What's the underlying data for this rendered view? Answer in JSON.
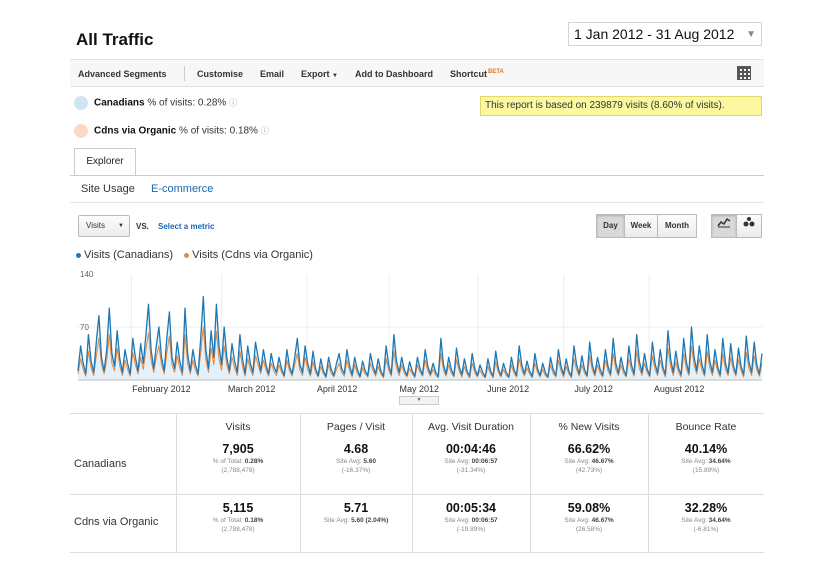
{
  "header": {
    "title": "All Traffic",
    "date_range": "1 Jan 2012 - 31 Aug 2012"
  },
  "toolbar": {
    "advanced_segments": "Advanced Segments",
    "customise": "Customise",
    "email": "Email",
    "export": "Export",
    "add_to_dashboard": "Add to Dashboard",
    "shortcut": "Shortcut",
    "beta": "BETA"
  },
  "segments": [
    {
      "name": "Canadians",
      "info": "% of visits: 0.28%",
      "color": "#cfe6f5"
    },
    {
      "name": "Cdns via Organic",
      "info": "% of visits: 0.18%",
      "color": "#fbd9c4"
    }
  ],
  "notice": "This report is based on 239879 visits (8.60% of visits).",
  "tabs": {
    "explorer": "Explorer",
    "site_usage": "Site Usage",
    "ecommerce": "E-commerce"
  },
  "controls": {
    "metric": "Visits",
    "vs": "VS.",
    "select_metric": "Select a metric",
    "day": "Day",
    "week": "Week",
    "month": "Month"
  },
  "colors": {
    "series1": "#1f77b4",
    "series2": "#e8883a",
    "area": "#e4f1fa"
  },
  "chart_data": {
    "type": "line",
    "series": [
      {
        "name": "Visits (Canadians)",
        "values": [
          12,
          45,
          22,
          8,
          60,
          25,
          10,
          50,
          85,
          30,
          12,
          40,
          95,
          35,
          18,
          65,
          28,
          10,
          40,
          22,
          8,
          55,
          30,
          12,
          48,
          22,
          60,
          100,
          40,
          15,
          45,
          70,
          30,
          12,
          55,
          90,
          30,
          15,
          50,
          25,
          10,
          95,
          35,
          12,
          40,
          20,
          8,
          55,
          110,
          40,
          15,
          65,
          30,
          100,
          45,
          20,
          70,
          30,
          12,
          48,
          25,
          10,
          60,
          28,
          8,
          45,
          22,
          10,
          50,
          30,
          12,
          40,
          20,
          8,
          35,
          18,
          10,
          30,
          15,
          6,
          40,
          18,
          8,
          30,
          55,
          20,
          10,
          45,
          22,
          8,
          38,
          15,
          6,
          28,
          12,
          5,
          30,
          14,
          6,
          22,
          35,
          15,
          8,
          40,
          20,
          7,
          30,
          14,
          5,
          25,
          12,
          6,
          35,
          18,
          8,
          28,
          12,
          5,
          45,
          20,
          8,
          60,
          25,
          10,
          30,
          14,
          6,
          24,
          12,
          5,
          30,
          15,
          7,
          40,
          18,
          8,
          22,
          10,
          5,
          55,
          20,
          8,
          30,
          14,
          6,
          42,
          18,
          7,
          28,
          12,
          5,
          35,
          15,
          6,
          20,
          10,
          4,
          28,
          12,
          5,
          38,
          15,
          6,
          22,
          10,
          4,
          30,
          14,
          6,
          45,
          20,
          8,
          25,
          12,
          5,
          35,
          15,
          6,
          22,
          10,
          4,
          30,
          14,
          6,
          40,
          18,
          7,
          28,
          12,
          5,
          45,
          20,
          8,
          32,
          14,
          6,
          50,
          20,
          8,
          30,
          14,
          6,
          40,
          18,
          8,
          55,
          22,
          9,
          30,
          14,
          6,
          45,
          20,
          8,
          60,
          25,
          10,
          35,
          15,
          6,
          50,
          22,
          9,
          40,
          18,
          7,
          65,
          28,
          10,
          38,
          16,
          7,
          55,
          24,
          9,
          70,
          30,
          12,
          45,
          20,
          8,
          60,
          25,
          10,
          40,
          18,
          7,
          55,
          22,
          9,
          48,
          20,
          8,
          42,
          18,
          7,
          58,
          24,
          10,
          50,
          20,
          8,
          35
        ],
        "ylim": [
          0,
          140
        ]
      },
      {
        "name": "Visits (Cdns via Organic)",
        "values": [
          8,
          28,
          14,
          5,
          38,
          16,
          6,
          32,
          55,
          20,
          8,
          26,
          60,
          22,
          12,
          42,
          18,
          6,
          26,
          14,
          5,
          36,
          20,
          8,
          30,
          14,
          40,
          62,
          26,
          10,
          30,
          45,
          20,
          8,
          36,
          58,
          20,
          10,
          32,
          16,
          6,
          60,
          22,
          8,
          26,
          13,
          5,
          36,
          70,
          26,
          10,
          42,
          20,
          64,
          28,
          13,
          45,
          20,
          8,
          30,
          16,
          6,
          38,
          18,
          5,
          28,
          14,
          6,
          32,
          20,
          8,
          26,
          13,
          5,
          22,
          12,
          6,
          20,
          10,
          4,
          26,
          12,
          5,
          20,
          35,
          13,
          6,
          30,
          14,
          5,
          24,
          10,
          4,
          18,
          8,
          3,
          20,
          9,
          4,
          14,
          22,
          10,
          5,
          26,
          13,
          4,
          20,
          9,
          3,
          16,
          8,
          4,
          22,
          12,
          5,
          18,
          8,
          3,
          28,
          13,
          5,
          38,
          16,
          6,
          20,
          9,
          4,
          15,
          8,
          3,
          20,
          10,
          5,
          26,
          12,
          5,
          14,
          6,
          3,
          35,
          13,
          5,
          20,
          9,
          4,
          27,
          12,
          4,
          18,
          8,
          3,
          22,
          10,
          4,
          13,
          6,
          3,
          18,
          8,
          3,
          24,
          10,
          4,
          14,
          6,
          3,
          20,
          9,
          4,
          28,
          13,
          5,
          16,
          8,
          3,
          22,
          10,
          4,
          14,
          6,
          3,
          20,
          9,
          4,
          26,
          12,
          4,
          18,
          8,
          3,
          28,
          13,
          5,
          20,
          9,
          4,
          32,
          13,
          5,
          20,
          9,
          4,
          26,
          12,
          5,
          35,
          14,
          6,
          20,
          9,
          4,
          28,
          13,
          5,
          38,
          16,
          6,
          22,
          10,
          4,
          32,
          14,
          6,
          26,
          12,
          4,
          42,
          18,
          6,
          24,
          10,
          4,
          35,
          15,
          6,
          45,
          20,
          8,
          28,
          13,
          5,
          38,
          16,
          6,
          26,
          12,
          4,
          35,
          14,
          6,
          30,
          13,
          5,
          27,
          12,
          4,
          37,
          15,
          6,
          32,
          13,
          5,
          22
        ],
        "ylim": [
          0,
          140
        ]
      }
    ],
    "y_ticks": [
      "140",
      "70"
    ],
    "x_ticks": [
      "February 2012",
      "March 2012",
      "April 2012",
      "May 2012",
      "June 2012",
      "July 2012",
      "August 2012"
    ],
    "ylim": [
      0,
      140
    ],
    "grid": true,
    "legend": "top-left"
  },
  "stats": {
    "columns": [
      "Visits",
      "Pages / Visit",
      "Avg. Visit Duration",
      "% New Visits",
      "Bounce Rate"
    ],
    "rows": [
      {
        "label": "Canadians",
        "cells": [
          {
            "value": "7,905",
            "sub1": "% of Total:",
            "sub1b": "0.28%",
            "sub2": "(2,788,478)"
          },
          {
            "value": "4.68",
            "sub1": "Site Avg:",
            "sub1b": "5.60",
            "sub2": "(-16.37%)"
          },
          {
            "value": "00:04:46",
            "sub1": "Site Avg:",
            "sub1b": "00:06:57",
            "sub2": "(-31.34%)"
          },
          {
            "value": "66.62%",
            "sub1": "Site Avg:",
            "sub1b": "46.67%",
            "sub2": "(42.73%)"
          },
          {
            "value": "40.14%",
            "sub1": "Site Avg:",
            "sub1b": "34.64%",
            "sub2": "(15.89%)"
          }
        ]
      },
      {
        "label": "Cdns via Organic",
        "cells": [
          {
            "value": "5,115",
            "sub1": "% of Total:",
            "sub1b": "0.18%",
            "sub2": "(2,788,478)"
          },
          {
            "value": "5.71",
            "sub1": "Site Avg:",
            "sub1b": "5.60 (2.04%)",
            "sub2": ""
          },
          {
            "value": "00:05:34",
            "sub1": "Site Avg:",
            "sub1b": "00:06:57",
            "sub2": "(-19.89%)"
          },
          {
            "value": "59.08%",
            "sub1": "Site Avg:",
            "sub1b": "46.67%",
            "sub2": "(26.58%)"
          },
          {
            "value": "32.28%",
            "sub1": "Site Avg:",
            "sub1b": "34.64%",
            "sub2": "(-6.81%)"
          }
        ]
      }
    ]
  }
}
